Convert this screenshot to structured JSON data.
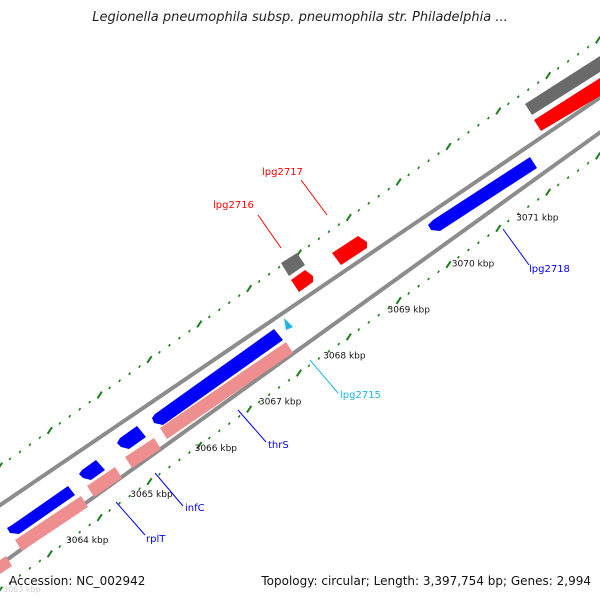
{
  "title": "Legionella pneumophila subsp. pneumophila str. Philadelphia ...",
  "footer": {
    "accession": "Accession: NC_002942",
    "topology": "Topology: circular; Length: 3,397,754 bp; Genes: 2,994"
  },
  "ghost_label": "3063 kbp",
  "colors": {
    "backbone": "#8c8c8c",
    "forward_cds": "#ff0000",
    "reverse_cds": "#0000ff",
    "rna": "#6a6a6a",
    "pink_track": "#ee8e8e",
    "highlight_gene": "#19b7e6",
    "tick": "#1e7e1e"
  },
  "tick_labels": [
    {
      "label": "3064 kbp",
      "pos": 3064
    },
    {
      "label": "3065 kbp",
      "pos": 3065
    },
    {
      "label": "3066 kbp",
      "pos": 3066
    },
    {
      "label": "3067 kbp",
      "pos": 3067
    },
    {
      "label": "3068 kbp",
      "pos": 3068
    },
    {
      "label": "3069 kbp",
      "pos": 3069
    },
    {
      "label": "3070 kbp",
      "pos": 3070
    },
    {
      "label": "3071 kbp",
      "pos": 3071
    }
  ],
  "genes": [
    {
      "name": "rplT",
      "color": "#0000ff"
    },
    {
      "name": "infC",
      "color": "#0000ff"
    },
    {
      "name": "thrS",
      "color": "#0000ff"
    },
    {
      "name": "lpg2715",
      "color": "#19b7e6"
    },
    {
      "name": "lpg2716",
      "color": "#ff0000"
    },
    {
      "name": "lpg2717",
      "color": "#ff0000"
    },
    {
      "name": "lpg2718",
      "color": "#0000ff"
    }
  ]
}
